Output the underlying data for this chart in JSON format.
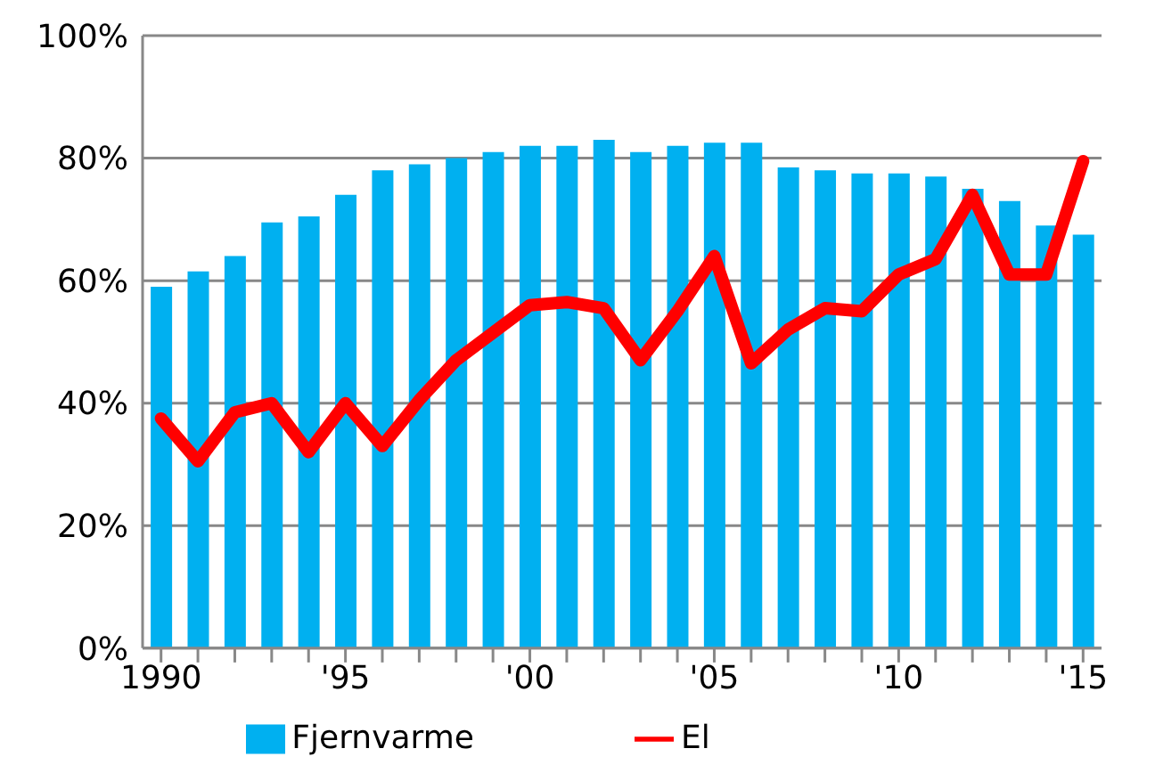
{
  "chart_data": {
    "type": "bar",
    "categories": [
      "1990",
      null,
      null,
      null,
      null,
      "'95",
      null,
      null,
      null,
      null,
      "'00",
      null,
      null,
      null,
      null,
      "'05",
      null,
      null,
      null,
      null,
      "'10",
      null,
      null,
      null,
      null,
      "'15"
    ],
    "series": [
      {
        "name": "Fjernvarme",
        "color": "#00b0f0",
        "values": [
          59,
          61.5,
          64,
          69.5,
          70.5,
          74,
          78,
          79,
          80,
          81,
          82,
          82,
          83,
          81,
          82,
          82.5,
          82.5,
          78.5,
          78,
          77.5,
          77.5,
          77,
          75,
          73,
          69,
          67.5
        ]
      },
      {
        "name": "El",
        "type": "line",
        "color": "#ff0000",
        "values": [
          37.5,
          30.5,
          38.5,
          40,
          32,
          40,
          33,
          40.5,
          47,
          51.5,
          56,
          56.5,
          55.5,
          47,
          55,
          64,
          46.5,
          52,
          55.5,
          55,
          61,
          63.5,
          74,
          61,
          61,
          79.5
        ]
      }
    ],
    "ylim": [
      0,
      100
    ],
    "yticks": [
      {
        "value": 0,
        "label": "0%"
      },
      {
        "value": 20,
        "label": "20%"
      },
      {
        "value": 40,
        "label": "40%"
      },
      {
        "value": 60,
        "label": "60%"
      },
      {
        "value": 80,
        "label": "80%"
      },
      {
        "value": 100,
        "label": "100%"
      }
    ],
    "grid": "y",
    "legend": "bottom",
    "marker": "none",
    "line_style": "solid"
  }
}
